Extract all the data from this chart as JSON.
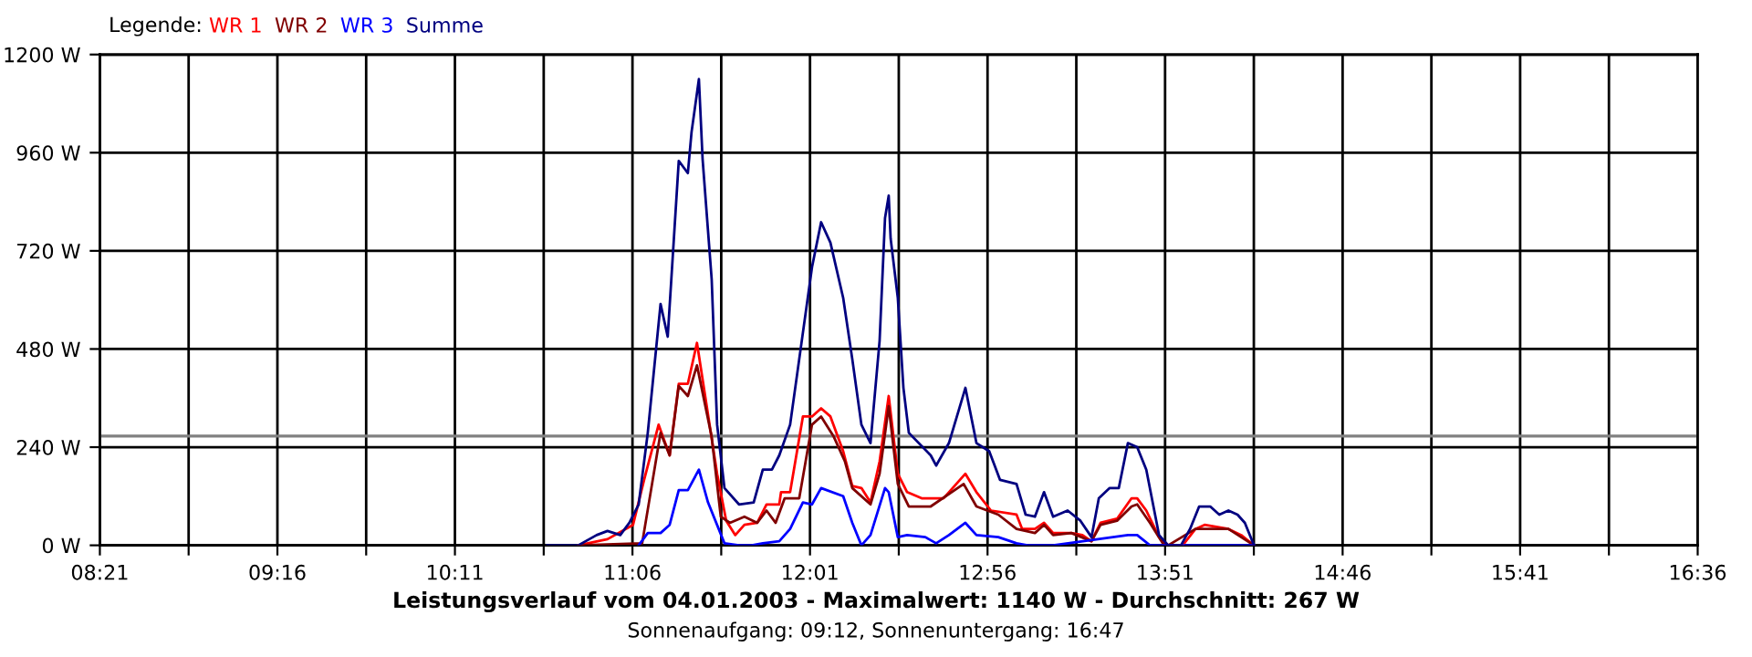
{
  "chart_data": {
    "type": "line",
    "title": "Leistungsverlauf vom 04.01.2003 - Maximalwert: 1140 W - Durchschnitt: 267 W",
    "subtitle": "Sonnenaufgang: 09:12, Sonnenuntergang: 16:47",
    "legend_title": "Legende:",
    "series": [
      {
        "name": "WR 1",
        "color": "#ff0000",
        "x": [
          10.82,
          10.971,
          11.103,
          11.16,
          11.235,
          11.292,
          11.339,
          11.386,
          11.433,
          11.49,
          11.537,
          11.584,
          11.631,
          11.678,
          11.744,
          11.792,
          11.858,
          11.867,
          11.914,
          11.98,
          12.027,
          12.074,
          12.122,
          12.188,
          12.235,
          12.282,
          12.329,
          12.376,
          12.423,
          12.47,
          12.518,
          12.593,
          12.706,
          12.819,
          12.876,
          12.951,
          13.083,
          13.112,
          13.178,
          13.225,
          13.272,
          13.366,
          13.423,
          13.47,
          13.517,
          13.602,
          13.677,
          13.706,
          13.753,
          13.819,
          13.866,
          13.941,
          14.007,
          14.054,
          14.177,
          14.243,
          14.309
        ],
        "values": [
          0,
          15,
          50,
          160,
          295,
          220,
          395,
          395,
          495,
          320,
          175,
          60,
          25,
          50,
          55,
          100,
          100,
          130,
          130,
          315,
          315,
          335,
          315,
          230,
          145,
          140,
          105,
          205,
          365,
          175,
          130,
          115,
          115,
          175,
          130,
          85,
          75,
          40,
          40,
          55,
          30,
          30,
          25,
          10,
          55,
          65,
          115,
          115,
          85,
          20,
          0,
          0,
          40,
          50,
          40,
          25,
          0
        ]
      },
      {
        "name": "WR 2",
        "color": "#800000",
        "x": [
          10.82,
          11.15,
          11.245,
          11.292,
          11.339,
          11.386,
          11.433,
          11.509,
          11.556,
          11.603,
          11.678,
          11.744,
          11.792,
          11.839,
          11.886,
          11.961,
          12.027,
          12.074,
          12.14,
          12.197,
          12.235,
          12.329,
          12.376,
          12.423,
          12.47,
          12.527,
          12.64,
          12.81,
          12.876,
          12.989,
          13.083,
          13.178,
          13.225,
          13.272,
          13.366,
          13.47,
          13.517,
          13.602,
          13.677,
          13.706,
          13.772,
          13.838,
          13.866,
          14.007,
          14.177,
          14.309
        ],
        "values": [
          0,
          5,
          275,
          220,
          390,
          365,
          440,
          265,
          70,
          55,
          70,
          55,
          85,
          55,
          115,
          115,
          295,
          315,
          265,
          205,
          140,
          100,
          175,
          340,
          150,
          95,
          95,
          150,
          95,
          75,
          40,
          30,
          50,
          25,
          30,
          10,
          50,
          60,
          95,
          100,
          55,
          5,
          0,
          40,
          40,
          0
        ]
      },
      {
        "name": "WR 3",
        "color": "#0000ff",
        "x": [
          11.132,
          11.179,
          11.245,
          11.292,
          11.339,
          11.386,
          11.443,
          11.49,
          11.575,
          11.65,
          11.716,
          11.773,
          11.858,
          11.914,
          11.98,
          12.027,
          12.074,
          12.188,
          12.235,
          12.282,
          12.329,
          12.404,
          12.423,
          12.47,
          12.518,
          12.612,
          12.668,
          12.734,
          12.819,
          12.876,
          12.989,
          13.083,
          13.14,
          13.225,
          13.272,
          13.658,
          13.706,
          13.772,
          14.309
        ],
        "values": [
          0,
          30,
          30,
          50,
          135,
          135,
          185,
          105,
          5,
          0,
          0,
          5,
          10,
          40,
          105,
          100,
          140,
          120,
          55,
          0,
          25,
          140,
          130,
          20,
          25,
          20,
          5,
          25,
          55,
          25,
          20,
          5,
          0,
          0,
          0,
          25,
          25,
          0,
          0
        ]
      },
      {
        "name": "Summe",
        "color": "#000080",
        "x": [
          10.66,
          10.82,
          10.915,
          10.971,
          11.037,
          11.084,
          11.132,
          11.179,
          11.245,
          11.282,
          11.339,
          11.386,
          11.405,
          11.443,
          11.462,
          11.509,
          11.537,
          11.575,
          11.65,
          11.726,
          11.773,
          11.82,
          11.858,
          11.914,
          11.961,
          12.027,
          12.074,
          12.122,
          12.188,
          12.235,
          12.282,
          12.329,
          12.376,
          12.404,
          12.423,
          12.433,
          12.47,
          12.499,
          12.527,
          12.64,
          12.668,
          12.734,
          12.819,
          12.876,
          12.942,
          12.998,
          13.083,
          13.13,
          13.178,
          13.225,
          13.272,
          13.347,
          13.413,
          13.47,
          13.508,
          13.564,
          13.611,
          13.658,
          13.706,
          13.753,
          13.819,
          13.866,
          13.932,
          13.979,
          14.026,
          14.083,
          14.13,
          14.177,
          14.224,
          14.262,
          14.309
        ],
        "values": [
          0,
          0,
          25,
          35,
          25,
          55,
          100,
          275,
          590,
          510,
          940,
          910,
          1010,
          1140,
          945,
          650,
          295,
          140,
          100,
          105,
          185,
          185,
          220,
          295,
          455,
          680,
          790,
          740,
          605,
          455,
          295,
          250,
          500,
          800,
          855,
          750,
          605,
          385,
          275,
          220,
          195,
          250,
          385,
          250,
          230,
          160,
          150,
          75,
          70,
          130,
          70,
          85,
          60,
          20,
          115,
          140,
          140,
          250,
          240,
          185,
          25,
          0,
          0,
          40,
          95,
          95,
          75,
          85,
          75,
          55,
          0
        ]
      }
    ],
    "xlim": [
      8.35,
      16.6
    ],
    "xticks": [
      {
        "value": 8.35,
        "label": "08:21"
      },
      {
        "value": 8.8083,
        "label": null
      },
      {
        "value": 9.2667,
        "label": "09:16"
      },
      {
        "value": 9.725,
        "label": null
      },
      {
        "value": 10.1833,
        "label": "10:11"
      },
      {
        "value": 10.6417,
        "label": null
      },
      {
        "value": 11.1,
        "label": "11:06"
      },
      {
        "value": 11.5583,
        "label": null
      },
      {
        "value": 12.0167,
        "label": "12:01"
      },
      {
        "value": 12.475,
        "label": null
      },
      {
        "value": 12.9333,
        "label": "12:56"
      },
      {
        "value": 13.3917,
        "label": null
      },
      {
        "value": 13.85,
        "label": "13:51"
      },
      {
        "value": 14.3083,
        "label": null
      },
      {
        "value": 14.7667,
        "label": "14:46"
      },
      {
        "value": 15.225,
        "label": null
      },
      {
        "value": 15.6833,
        "label": "15:41"
      },
      {
        "value": 16.1417,
        "label": null
      },
      {
        "value": 16.6,
        "label": "16:36"
      }
    ],
    "ylim": [
      0,
      1200
    ],
    "yticks": [
      {
        "value": 0,
        "label": "0 W"
      },
      {
        "value": 240,
        "label": "240 W"
      },
      {
        "value": 480,
        "label": "480 W"
      },
      {
        "value": 720,
        "label": "720 W"
      },
      {
        "value": 960,
        "label": "960 W"
      },
      {
        "value": 1200,
        "label": "1200 W"
      }
    ],
    "ref_lines": [
      {
        "axis": "y",
        "value": 267,
        "color": "#808080"
      }
    ],
    "grid": true,
    "legend": "top left",
    "marker": "none",
    "line_style": "solid"
  }
}
